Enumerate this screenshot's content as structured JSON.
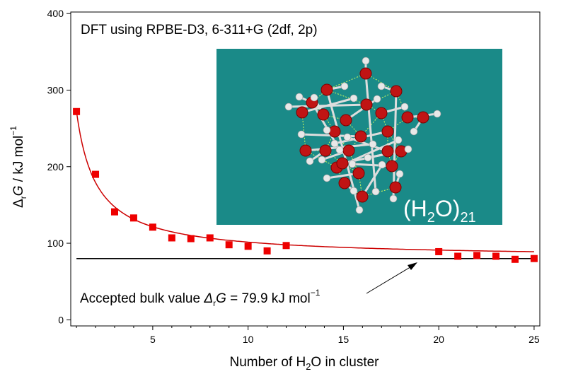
{
  "chart_data": {
    "type": "scatter",
    "title": "",
    "annotation_title": "DFT using RPBE-D3, 6-311+G (2df, 2p)",
    "xlabel": {
      "pre": "Number of H",
      "sub": "2",
      "post": "O in cluster"
    },
    "ylabel": {
      "delta": "Δ",
      "sub": "r",
      "var": "G",
      "unit": " / kJ mol",
      "sup": "−1"
    },
    "xlim": [
      0.7,
      25.3
    ],
    "ylim": [
      -8,
      402
    ],
    "xticks": [
      5,
      10,
      15,
      20,
      25
    ],
    "yticks": [
      0,
      100,
      200,
      300,
      400
    ],
    "points": [
      {
        "x": 1,
        "y": 272
      },
      {
        "x": 2,
        "y": 190
      },
      {
        "x": 3,
        "y": 141
      },
      {
        "x": 4,
        "y": 133
      },
      {
        "x": 5,
        "y": 121
      },
      {
        "x": 6,
        "y": 107
      },
      {
        "x": 7,
        "y": 106
      },
      {
        "x": 8,
        "y": 107
      },
      {
        "x": 9,
        "y": 98
      },
      {
        "x": 10,
        "y": 96
      },
      {
        "x": 11,
        "y": 90
      },
      {
        "x": 12,
        "y": 97
      },
      {
        "x": 20,
        "y": 89
      },
      {
        "x": 21,
        "y": 83
      },
      {
        "x": 22,
        "y": 84
      },
      {
        "x": 23,
        "y": 83
      },
      {
        "x": 24,
        "y": 79
      },
      {
        "x": 25,
        "y": 80
      }
    ],
    "fit_curve_color": "#cc0000",
    "marker_color": "#ee0000",
    "bulk_value": 79.9,
    "bulk_label": {
      "pre": "Accepted bulk value ",
      "delta": "Δ",
      "sub": "r",
      "var": "G",
      "post": " = 79.9 kJ mol",
      "sup": "−1"
    },
    "inset": {
      "background": "#1a8a88",
      "label": {
        "pre": "(H",
        "sub1": "2",
        "mid": "O)",
        "sub2": "21"
      }
    },
    "grid": false,
    "legend": "none"
  }
}
